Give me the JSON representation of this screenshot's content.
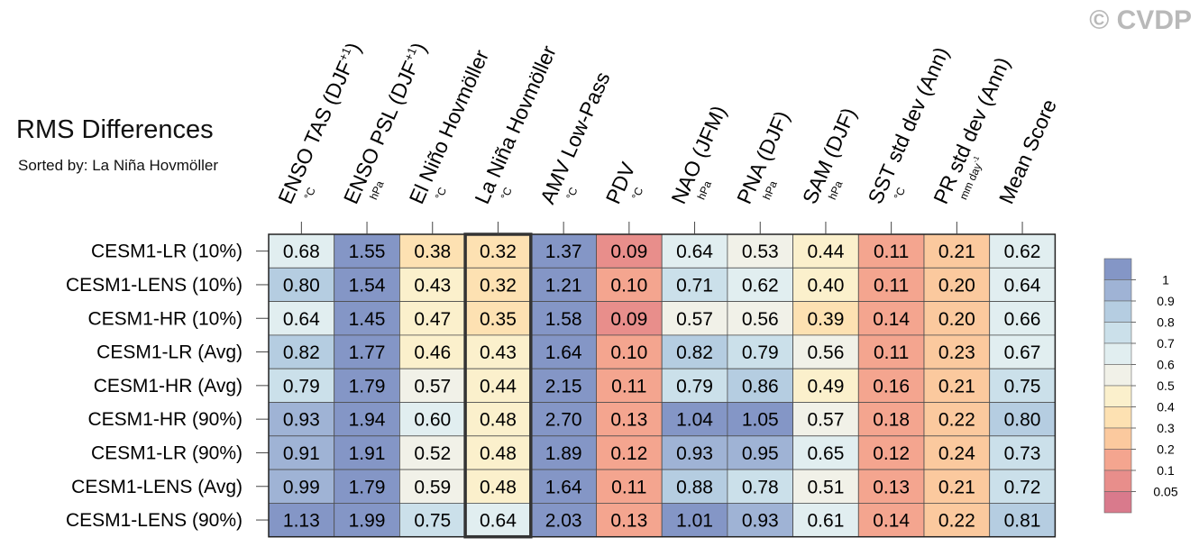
{
  "watermark": "© CVDP",
  "title": "RMS Differences",
  "subtitle": "Sorted by: La Niña Hovmöller",
  "chart_data": {
    "type": "heatmap",
    "columns": [
      {
        "label": "ENSO TAS (DJF",
        "sup": "+1",
        "close": ")",
        "unit": "°C"
      },
      {
        "label": "ENSO PSL (DJF",
        "sup": "+1",
        "close": ")",
        "unit": "hPa"
      },
      {
        "label": "El Niño Hovmöller",
        "sup": "",
        "close": "",
        "unit": "°C"
      },
      {
        "label": "La Niña Hovmöller",
        "sup": "",
        "close": "",
        "unit": "°C"
      },
      {
        "label": "AMV Low-Pass",
        "sup": "",
        "close": "",
        "unit": "°C"
      },
      {
        "label": "PDV",
        "sup": "",
        "close": "",
        "unit": "°C"
      },
      {
        "label": "NAO (JFM)",
        "sup": "",
        "close": "",
        "unit": "hPa"
      },
      {
        "label": "PNA (DJF)",
        "sup": "",
        "close": "",
        "unit": "hPa"
      },
      {
        "label": "SAM (DJF)",
        "sup": "",
        "close": "",
        "unit": "hPa"
      },
      {
        "label": "SST std dev (Ann)",
        "sup": "",
        "close": "",
        "unit": "°C"
      },
      {
        "label": "PR std dev (Ann)",
        "sup": "",
        "close": "",
        "unit": "mm day",
        "unit_sup": "-1"
      },
      {
        "label": "Mean Score",
        "sup": "",
        "close": "",
        "unit": ""
      }
    ],
    "highlight_column": 3,
    "rows": [
      {
        "name": "CESM1-LR (10%)",
        "values": [
          "0.68",
          "1.55",
          "0.38",
          "0.32",
          "1.37",
          "0.09",
          "0.64",
          "0.53",
          "0.44",
          "0.11",
          "0.21",
          "0.62"
        ]
      },
      {
        "name": "CESM1-LENS (10%)",
        "values": [
          "0.80",
          "1.54",
          "0.43",
          "0.32",
          "1.21",
          "0.10",
          "0.71",
          "0.62",
          "0.40",
          "0.11",
          "0.20",
          "0.64"
        ]
      },
      {
        "name": "CESM1-HR (10%)",
        "values": [
          "0.64",
          "1.45",
          "0.47",
          "0.35",
          "1.58",
          "0.09",
          "0.57",
          "0.56",
          "0.39",
          "0.14",
          "0.20",
          "0.66"
        ]
      },
      {
        "name": "CESM1-LR (Avg)",
        "values": [
          "0.82",
          "1.77",
          "0.46",
          "0.43",
          "1.64",
          "0.10",
          "0.82",
          "0.79",
          "0.56",
          "0.11",
          "0.23",
          "0.67"
        ]
      },
      {
        "name": "CESM1-HR (Avg)",
        "values": [
          "0.79",
          "1.79",
          "0.57",
          "0.44",
          "2.15",
          "0.11",
          "0.79",
          "0.86",
          "0.49",
          "0.16",
          "0.21",
          "0.75"
        ]
      },
      {
        "name": "CESM1-HR (90%)",
        "values": [
          "0.93",
          "1.94",
          "0.60",
          "0.48",
          "2.70",
          "0.13",
          "1.04",
          "1.05",
          "0.57",
          "0.18",
          "0.22",
          "0.80"
        ]
      },
      {
        "name": "CESM1-LR (90%)",
        "values": [
          "0.91",
          "1.91",
          "0.52",
          "0.48",
          "1.89",
          "0.12",
          "0.93",
          "0.95",
          "0.65",
          "0.12",
          "0.24",
          "0.73"
        ]
      },
      {
        "name": "CESM1-LENS (Avg)",
        "values": [
          "0.99",
          "1.79",
          "0.59",
          "0.48",
          "1.64",
          "0.11",
          "0.88",
          "0.78",
          "0.51",
          "0.13",
          "0.21",
          "0.72"
        ]
      },
      {
        "name": "CESM1-LENS (90%)",
        "values": [
          "1.13",
          "1.99",
          "0.75",
          "0.64",
          "2.03",
          "0.13",
          "1.01",
          "0.93",
          "0.61",
          "0.14",
          "0.22",
          "0.81"
        ]
      }
    ],
    "colorbar": {
      "labels": [
        "1",
        "0.9",
        "0.8",
        "0.7",
        "0.6",
        "0.5",
        "0.4",
        "0.3",
        "0.2",
        "0.1",
        "0.05"
      ],
      "colors": [
        "#8496c6",
        "#9fb3d5",
        "#b5cde1",
        "#cbe0ea",
        "#e1eef0",
        "#f1f1e8",
        "#fbf0cc",
        "#fde1b2",
        "#fbc99e",
        "#f4a58f",
        "#e88e8b",
        "#d97a8c"
      ]
    }
  }
}
